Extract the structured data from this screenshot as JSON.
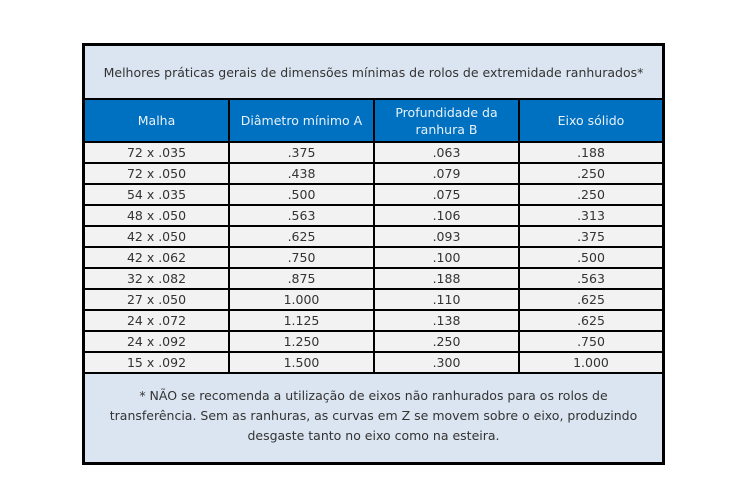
{
  "title": "Melhores práticas gerais de dimensões mínimas de rolos de extremidade ranhurados*",
  "columns": [
    "Malha",
    "Diâmetro mínimo A",
    "Profundidade da ranhura B",
    "Eixo sólido"
  ],
  "rows": [
    [
      "72 x .035",
      ".375",
      ".063",
      ".188"
    ],
    [
      "72 x .050",
      ".438",
      ".079",
      ".250"
    ],
    [
      "54 x .035",
      ".500",
      ".075",
      ".250"
    ],
    [
      "48 x .050",
      ".563",
      ".106",
      ".313"
    ],
    [
      "42 x .050",
      ".625",
      ".093",
      ".375"
    ],
    [
      "42 x .062",
      ".750",
      ".100",
      ".500"
    ],
    [
      "32 x .082",
      ".875",
      ".188",
      ".563"
    ],
    [
      "27 x .050",
      "1.000",
      ".110",
      ".625"
    ],
    [
      "24 x .072",
      "1.125",
      ".138",
      ".625"
    ],
    [
      "24 x .092",
      "1.250",
      ".250",
      ".750"
    ],
    [
      "15 x .092",
      "1.500",
      ".300",
      "1.000"
    ]
  ],
  "footnote": "* NÃO se recomenda a utilização de eixos não ranhurados para os rolos de transferência. Sem as ranhuras, as curvas em Z se movem sobre o eixo, produzindo desgaste tanto no eixo como na esteira.",
  "colors": {
    "header_bg": "#0070c0",
    "title_bg": "#dbe5f1",
    "row_bg": "#f2f2f2",
    "border": "#000000"
  }
}
